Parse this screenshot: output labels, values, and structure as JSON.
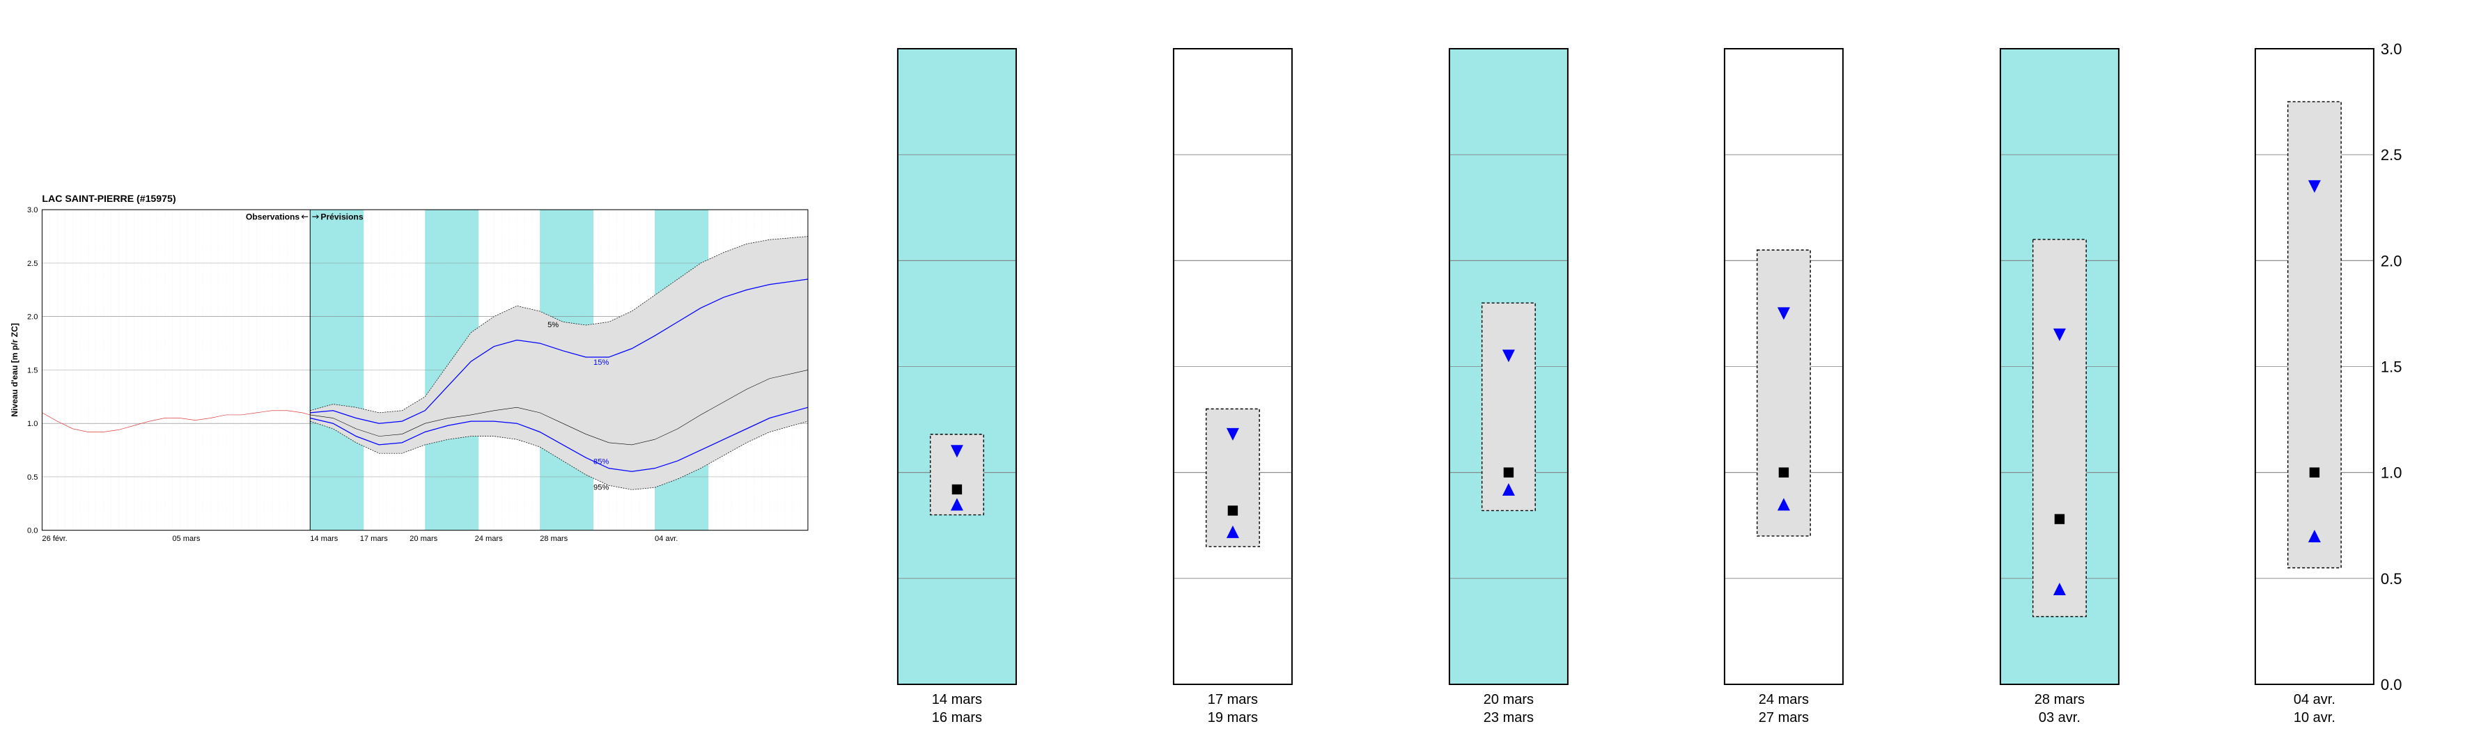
{
  "title": "LAC SAINT-PIERRE (#15975)",
  "ylabel": "Niveau d'eau [m p/r ZC]",
  "observations_label": "Observations",
  "previsions_label": "Prévisions",
  "percentile_labels": {
    "p5": "5%",
    "p15": "15%",
    "p85": "85%",
    "p95": "95%"
  },
  "main_chart": {
    "ylim": [
      0.0,
      3.0
    ],
    "ytick_step": 0.5,
    "yticks": [
      0.0,
      0.5,
      1.0,
      1.5,
      2.0,
      2.5,
      3.0
    ],
    "x_labels": [
      "26 févr.",
      "05 mars",
      "14 mars",
      "17 mars",
      "20 mars",
      "24 mars",
      "28 mars",
      "04 avr."
    ],
    "x_positions_pct": [
      0,
      17,
      35,
      41.5,
      48,
      56.5,
      65,
      80
    ],
    "obs_forecast_boundary_pct": 35,
    "weekend_bands_pct": [
      [
        35,
        42
      ],
      [
        50,
        57
      ],
      [
        65,
        72
      ],
      [
        80,
        87
      ]
    ],
    "background_color": "#ffffff",
    "weekend_band_color": "#a0e8e8",
    "grid_color": "#d8d8d8",
    "axis_color": "#000000",
    "envelope_fill": "#e0e0e0",
    "envelope_stroke": "#000000",
    "envelope_dash": "4,3",
    "percentile_line_color": "#0000ff",
    "percentile_line_width": 2.5,
    "median_line_color": "#000000",
    "median_line_width": 1.2,
    "observation_line_color": "#e04040",
    "observation_line_width": 1.4,
    "title_fontsize": 28,
    "axis_label_fontsize": 24,
    "tick_fontsize": 22,
    "observations": [
      [
        0,
        1.1
      ],
      [
        2,
        1.02
      ],
      [
        4,
        0.95
      ],
      [
        6,
        0.92
      ],
      [
        8,
        0.92
      ],
      [
        10,
        0.94
      ],
      [
        12,
        0.98
      ],
      [
        14,
        1.02
      ],
      [
        16,
        1.05
      ],
      [
        18,
        1.05
      ],
      [
        20,
        1.03
      ],
      [
        22,
        1.05
      ],
      [
        24,
        1.08
      ],
      [
        26,
        1.08
      ],
      [
        28,
        1.1
      ],
      [
        30,
        1.12
      ],
      [
        32,
        1.12
      ],
      [
        34,
        1.1
      ],
      [
        35,
        1.08
      ]
    ],
    "p5": [
      [
        35,
        1.12
      ],
      [
        38,
        1.18
      ],
      [
        41,
        1.15
      ],
      [
        44,
        1.1
      ],
      [
        47,
        1.12
      ],
      [
        50,
        1.25
      ],
      [
        53,
        1.55
      ],
      [
        56,
        1.85
      ],
      [
        59,
        2.0
      ],
      [
        62,
        2.1
      ],
      [
        65,
        2.05
      ],
      [
        68,
        1.95
      ],
      [
        71,
        1.92
      ],
      [
        74,
        1.95
      ],
      [
        77,
        2.05
      ],
      [
        80,
        2.2
      ],
      [
        83,
        2.35
      ],
      [
        86,
        2.5
      ],
      [
        89,
        2.6
      ],
      [
        92,
        2.68
      ],
      [
        95,
        2.72
      ],
      [
        100,
        2.75
      ]
    ],
    "p15": [
      [
        35,
        1.1
      ],
      [
        38,
        1.12
      ],
      [
        41,
        1.05
      ],
      [
        44,
        1.0
      ],
      [
        47,
        1.02
      ],
      [
        50,
        1.12
      ],
      [
        53,
        1.35
      ],
      [
        56,
        1.58
      ],
      [
        59,
        1.72
      ],
      [
        62,
        1.78
      ],
      [
        65,
        1.75
      ],
      [
        68,
        1.68
      ],
      [
        71,
        1.62
      ],
      [
        74,
        1.62
      ],
      [
        77,
        1.7
      ],
      [
        80,
        1.82
      ],
      [
        83,
        1.95
      ],
      [
        86,
        2.08
      ],
      [
        89,
        2.18
      ],
      [
        92,
        2.25
      ],
      [
        95,
        2.3
      ],
      [
        100,
        2.35
      ]
    ],
    "median": [
      [
        35,
        1.08
      ],
      [
        38,
        1.05
      ],
      [
        41,
        0.95
      ],
      [
        44,
        0.88
      ],
      [
        47,
        0.9
      ],
      [
        50,
        1.0
      ],
      [
        53,
        1.05
      ],
      [
        56,
        1.08
      ],
      [
        59,
        1.12
      ],
      [
        62,
        1.15
      ],
      [
        65,
        1.1
      ],
      [
        68,
        1.0
      ],
      [
        71,
        0.9
      ],
      [
        74,
        0.82
      ],
      [
        77,
        0.8
      ],
      [
        80,
        0.85
      ],
      [
        83,
        0.95
      ],
      [
        86,
        1.08
      ],
      [
        89,
        1.2
      ],
      [
        92,
        1.32
      ],
      [
        95,
        1.42
      ],
      [
        100,
        1.5
      ]
    ],
    "p85": [
      [
        35,
        1.05
      ],
      [
        38,
        1.0
      ],
      [
        41,
        0.88
      ],
      [
        44,
        0.8
      ],
      [
        47,
        0.82
      ],
      [
        50,
        0.92
      ],
      [
        53,
        0.98
      ],
      [
        56,
        1.02
      ],
      [
        59,
        1.02
      ],
      [
        62,
        1.0
      ],
      [
        65,
        0.92
      ],
      [
        68,
        0.8
      ],
      [
        71,
        0.68
      ],
      [
        74,
        0.58
      ],
      [
        77,
        0.55
      ],
      [
        80,
        0.58
      ],
      [
        83,
        0.65
      ],
      [
        86,
        0.75
      ],
      [
        89,
        0.85
      ],
      [
        92,
        0.95
      ],
      [
        95,
        1.05
      ],
      [
        100,
        1.15
      ]
    ],
    "p95": [
      [
        35,
        1.02
      ],
      [
        38,
        0.95
      ],
      [
        41,
        0.82
      ],
      [
        44,
        0.72
      ],
      [
        47,
        0.72
      ],
      [
        50,
        0.8
      ],
      [
        53,
        0.85
      ],
      [
        56,
        0.88
      ],
      [
        59,
        0.88
      ],
      [
        62,
        0.85
      ],
      [
        65,
        0.78
      ],
      [
        68,
        0.65
      ],
      [
        71,
        0.52
      ],
      [
        74,
        0.42
      ],
      [
        77,
        0.38
      ],
      [
        80,
        0.4
      ],
      [
        83,
        0.48
      ],
      [
        86,
        0.58
      ],
      [
        89,
        0.7
      ],
      [
        92,
        0.82
      ],
      [
        95,
        0.92
      ],
      [
        100,
        1.02
      ]
    ],
    "label_positions": {
      "p5": [
        66,
        1.9
      ],
      "p15": [
        72,
        1.55
      ],
      "p85": [
        72,
        0.62
      ],
      "p95": [
        72,
        0.38
      ]
    }
  },
  "small_panels": [
    {
      "weekend": true,
      "top_label": "14 mars",
      "bottom_label": "16 mars",
      "p5": 1.18,
      "p15": 1.1,
      "median": 0.92,
      "p85": 0.85,
      "p95": 0.8
    },
    {
      "weekend": false,
      "top_label": "17 mars",
      "bottom_label": "19 mars",
      "p5": 1.3,
      "p15": 1.18,
      "median": 0.82,
      "p85": 0.72,
      "p95": 0.65
    },
    {
      "weekend": true,
      "top_label": "20 mars",
      "bottom_label": "23 mars",
      "p5": 1.8,
      "p15": 1.55,
      "median": 1.0,
      "p85": 0.92,
      "p95": 0.82
    },
    {
      "weekend": false,
      "top_label": "24 mars",
      "bottom_label": "27 mars",
      "p5": 2.05,
      "p15": 1.75,
      "median": 1.0,
      "p85": 0.85,
      "p95": 0.7
    },
    {
      "weekend": true,
      "top_label": "28 mars",
      "bottom_label": "03 avr.",
      "p5": 2.1,
      "p15": 1.65,
      "median": 0.78,
      "p85": 0.45,
      "p95": 0.32
    },
    {
      "weekend": false,
      "top_label": "04 avr.",
      "bottom_label": "10 avr.",
      "p5": 2.75,
      "p15": 2.35,
      "median": 1.0,
      "p85": 0.7,
      "p95": 0.55
    }
  ],
  "small_panel_style": {
    "marker_up_color": "#0000ff",
    "marker_down_color": "#0000ff",
    "marker_square_color": "#000000",
    "marker_size": 9,
    "box_stroke": "#000000",
    "box_dash": "4,3",
    "box_fill": "#e0e0e0",
    "tick_fontsize": 20
  }
}
